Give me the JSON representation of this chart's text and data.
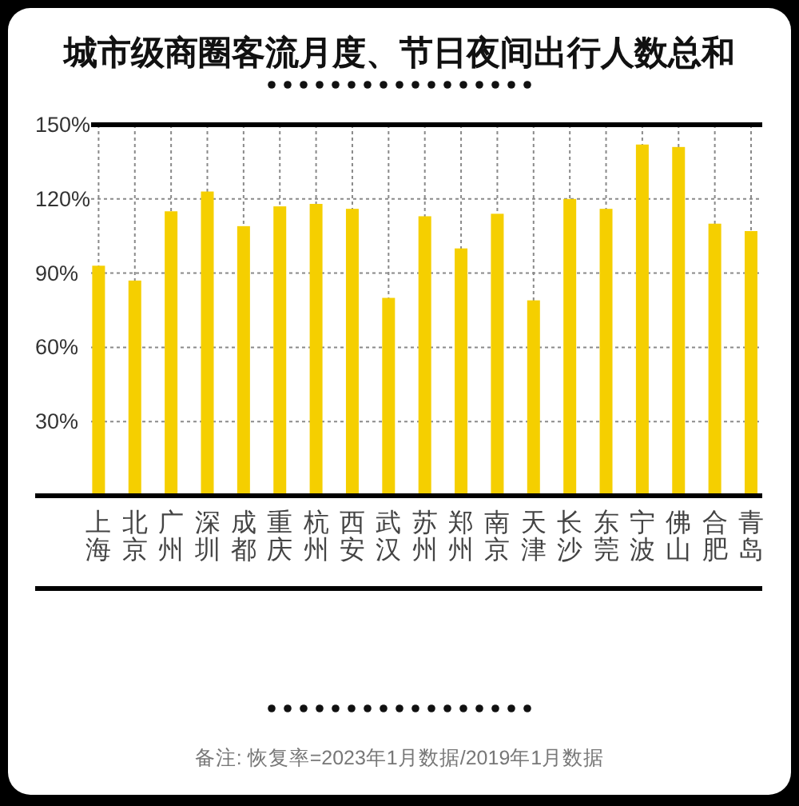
{
  "chart_data": {
    "type": "bar",
    "title": "城市级商圈客流月度、节日夜间出行人数总和",
    "categories": [
      "上海",
      "北京",
      "广州",
      "深圳",
      "成都",
      "重庆",
      "杭州",
      "西安",
      "武汉",
      "苏州",
      "郑州",
      "南京",
      "天津",
      "长沙",
      "东莞",
      "宁波",
      "佛山",
      "合肥",
      "青岛"
    ],
    "values": [
      93,
      87,
      115,
      123,
      109,
      117,
      118,
      116,
      80,
      113,
      100,
      114,
      79,
      120,
      116,
      142,
      141,
      110,
      107
    ],
    "color": "#f5cf00",
    "ylim": [
      0,
      150
    ],
    "yticks": [
      {
        "value": 30,
        "label": "30%"
      },
      {
        "value": 60,
        "label": "60%"
      },
      {
        "value": 90,
        "label": "90%"
      },
      {
        "value": 120,
        "label": "120%"
      },
      {
        "value": 150,
        "label": "150%"
      }
    ],
    "grid": true,
    "annotations": [
      "备注: 恢复率=2023年1月数据/2019年1月数据"
    ]
  }
}
